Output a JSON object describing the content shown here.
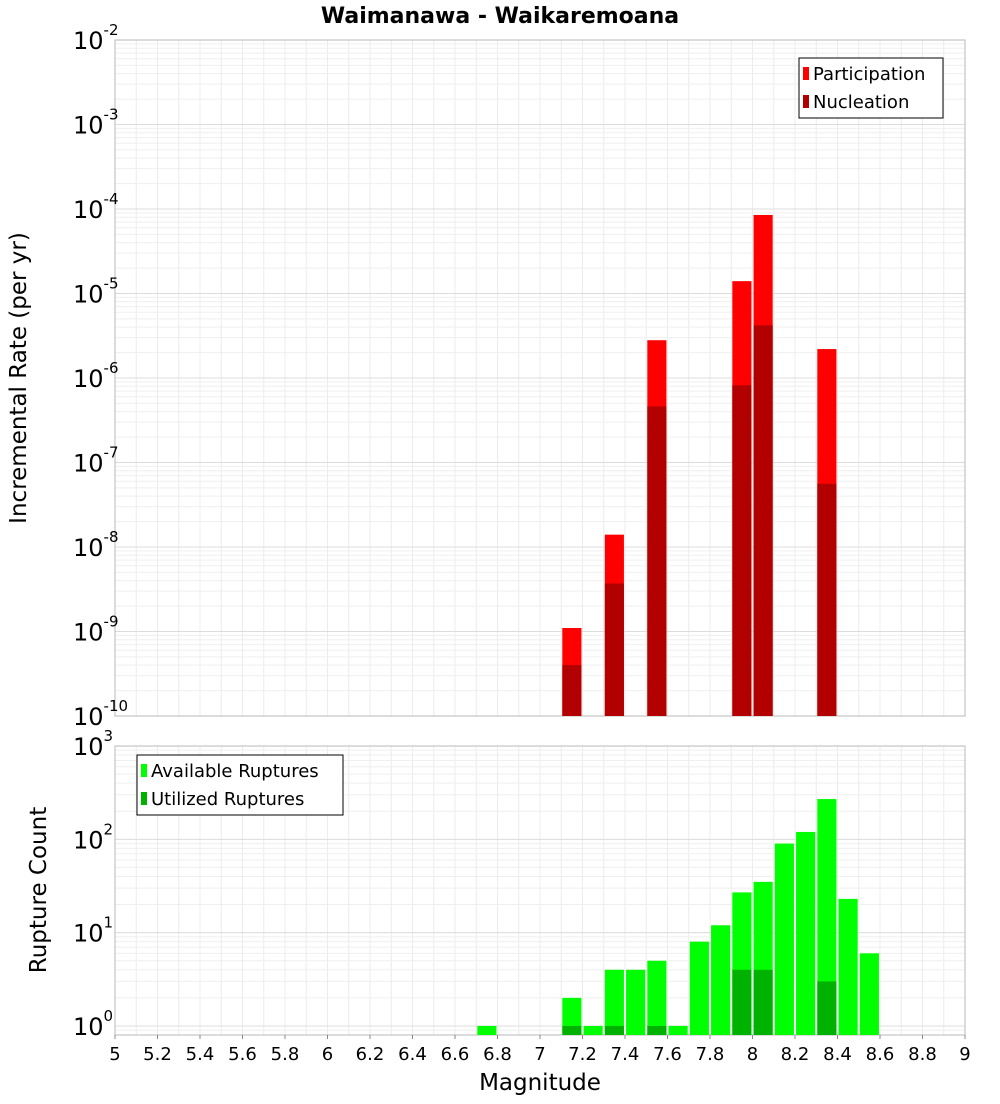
{
  "chart_data": [
    {
      "type": "bar",
      "title": "Waimanawa - Waikaremoana",
      "ylabel": "Incremental Rate (per yr)",
      "yscale": "log",
      "ylim": [
        1e-10,
        0.01
      ],
      "xlim": [
        5,
        9
      ],
      "grid": true,
      "legend_position": "top-right",
      "bar_width": 0.09,
      "series": [
        {
          "name": "Participation",
          "color": "#ff0000",
          "x": [
            7.15,
            7.35,
            7.55,
            7.95,
            8.05,
            8.35
          ],
          "values": [
            1.1e-09,
            1.4e-08,
            2.8e-06,
            1.4e-05,
            8.5e-05,
            2.2e-06
          ]
        },
        {
          "name": "Nucleation",
          "color": "#b20000",
          "x": [
            7.15,
            7.35,
            7.55,
            7.95,
            8.05,
            8.35
          ],
          "values": [
            4e-10,
            3.7e-09,
            4.6e-07,
            8.2e-07,
            4.2e-06,
            5.6e-08
          ]
        }
      ]
    },
    {
      "type": "bar",
      "ylabel": "Rupture Count",
      "xlabel": "Magnitude",
      "yscale": "log",
      "ylim": [
        0.8,
        1000
      ],
      "xlim": [
        5,
        9
      ],
      "grid": true,
      "legend_position": "top-left",
      "bar_width": 0.09,
      "x_ticks": [
        "5",
        "5.2",
        "5.4",
        "5.6",
        "5.8",
        "6",
        "6.2",
        "6.4",
        "6.6",
        "6.8",
        "7",
        "7.2",
        "7.4",
        "7.6",
        "7.8",
        "8",
        "8.2",
        "8.4",
        "8.6",
        "8.8",
        "9"
      ],
      "series": [
        {
          "name": "Available Ruptures",
          "color": "#00ff00",
          "x": [
            6.75,
            7.15,
            7.25,
            7.35,
            7.45,
            7.55,
            7.65,
            7.75,
            7.85,
            7.95,
            8.05,
            8.15,
            8.25,
            8.35,
            8.45,
            8.55
          ],
          "values": [
            1,
            2,
            1,
            4,
            4,
            5,
            1,
            8,
            12,
            27,
            35,
            90,
            120,
            270,
            23,
            6
          ]
        },
        {
          "name": "Utilized Ruptures",
          "color": "#00b200",
          "x": [
            7.15,
            7.35,
            7.55,
            7.95,
            8.05,
            8.35
          ],
          "values": [
            1,
            1,
            1,
            4,
            4,
            3
          ]
        }
      ]
    }
  ]
}
